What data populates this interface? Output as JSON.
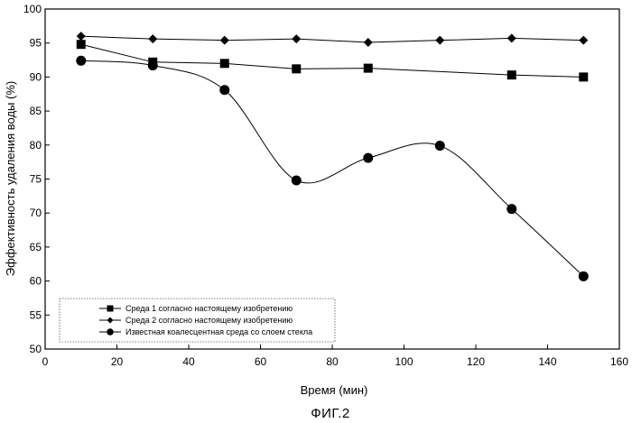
{
  "chart_data": {
    "type": "line",
    "title": "",
    "xlabel": "Время (мин)",
    "ylabel": "Эффективность удаления воды (%)",
    "xlim": [
      0,
      160
    ],
    "ylim": [
      50,
      100
    ],
    "x_ticks": [
      0,
      20,
      40,
      60,
      80,
      100,
      120,
      140,
      160
    ],
    "y_ticks": [
      50,
      55,
      60,
      65,
      70,
      75,
      80,
      85,
      90,
      95,
      100
    ],
    "grid": false,
    "legend_position": "bottom-left",
    "series": [
      {
        "name": "Среда 1 согласно настоящему изобретению",
        "marker": "square",
        "smooth": false,
        "x": [
          10,
          30,
          50,
          70,
          90,
          130,
          150
        ],
        "y": [
          94.8,
          92.2,
          92.0,
          91.2,
          91.3,
          90.3,
          90.0
        ]
      },
      {
        "name": "Среда 2 согласно настоящему изобретению",
        "marker": "diamond",
        "smooth": false,
        "x": [
          10,
          30,
          50,
          70,
          90,
          110,
          130,
          150
        ],
        "y": [
          96.0,
          95.6,
          95.4,
          95.6,
          95.1,
          95.4,
          95.7,
          95.4
        ]
      },
      {
        "name": "Известная коалесцентная среда со слоем стекла",
        "marker": "circle",
        "smooth": true,
        "x": [
          10,
          30,
          50,
          70,
          90,
          110,
          130,
          150
        ],
        "y": [
          92.4,
          91.7,
          88.1,
          74.8,
          78.1,
          79.9,
          70.6,
          60.7
        ]
      }
    ]
  },
  "caption": "ФИГ.2"
}
